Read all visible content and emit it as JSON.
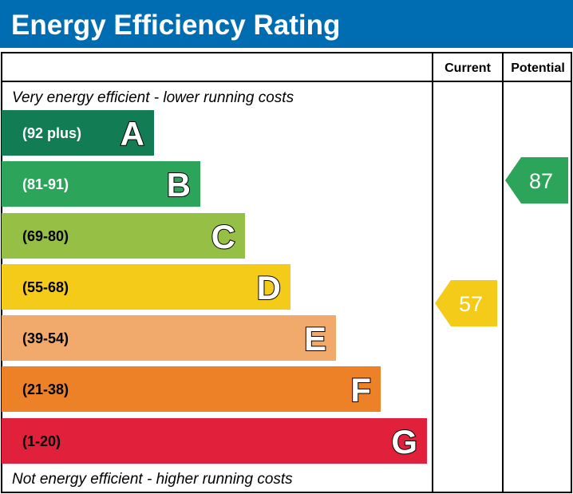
{
  "title": "Energy Efficiency Rating",
  "columns": {
    "current": "Current",
    "potential": "Potential"
  },
  "top_note": "Very energy efficient - lower running costs",
  "bottom_note": "Not energy efficient - higher running costs",
  "chart_data": {
    "type": "bar",
    "title": "Energy Efficiency Rating",
    "bands": [
      {
        "letter": "A",
        "range": "(92 plus)",
        "color": "#127c55",
        "text_color": "#ffffff"
      },
      {
        "letter": "B",
        "range": "(81-91)",
        "color": "#2ca55a",
        "text_color": "#ffffff"
      },
      {
        "letter": "C",
        "range": "(69-80)",
        "color": "#95bf45",
        "text_color": "#000000"
      },
      {
        "letter": "D",
        "range": "(55-68)",
        "color": "#f5cb1a",
        "text_color": "#000000"
      },
      {
        "letter": "E",
        "range": "(39-54)",
        "color": "#f2aa6c",
        "text_color": "#000000"
      },
      {
        "letter": "F",
        "range": "(21-38)",
        "color": "#ec8128",
        "text_color": "#000000"
      },
      {
        "letter": "G",
        "range": "(1-20)",
        "color": "#e1203b",
        "text_color": "#000000"
      }
    ],
    "current": {
      "value": "57",
      "band": "D",
      "color": "#f5cb1a"
    },
    "potential": {
      "value": "87",
      "band": "B",
      "color": "#2ca55a"
    }
  },
  "header_color": "#006db3"
}
